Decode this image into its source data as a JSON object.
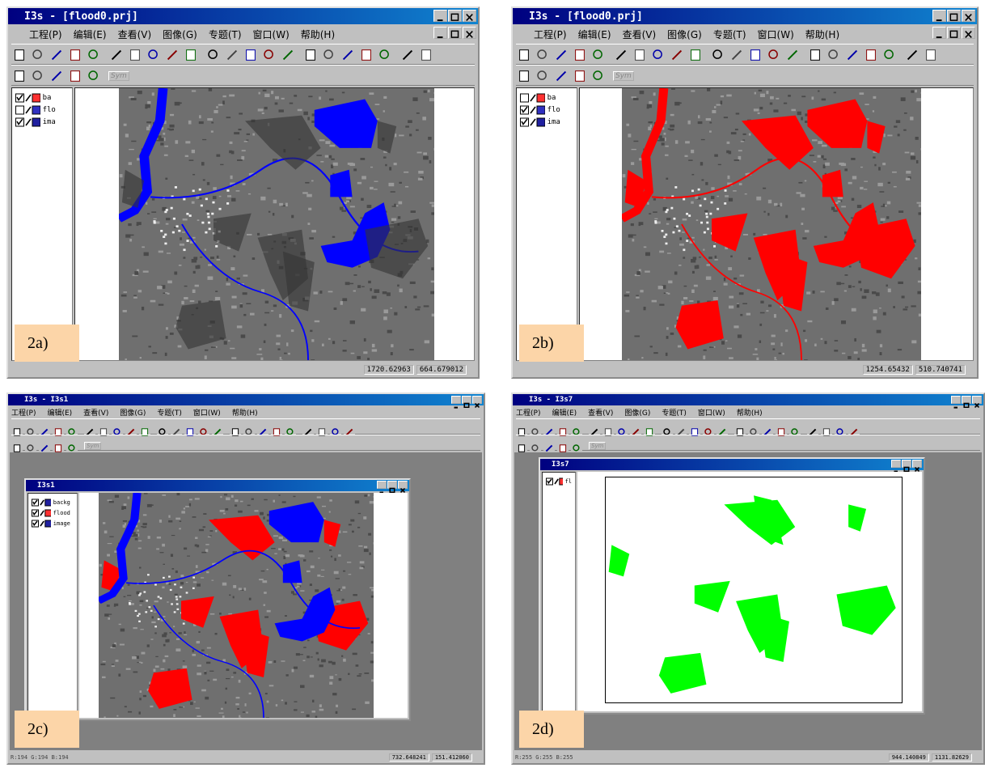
{
  "panels": [
    {
      "label": "2a)",
      "window": {
        "title": "I3s - [flood0.prj]",
        "menu": [
          "工程(P)",
          "编辑(E)",
          "查看(V)",
          "图像(G)",
          "专题(T)",
          "窗口(W)",
          "帮助(H)"
        ],
        "toolbar_text": "Sym",
        "layers": [
          "ba",
          "flo",
          "ima"
        ],
        "status": [
          "1720.62963",
          "664.679012"
        ]
      }
    },
    {
      "label": "2b)",
      "window": {
        "title": "I3s - [flood0.prj]",
        "menu": [
          "工程(P)",
          "编辑(E)",
          "查看(V)",
          "图像(G)",
          "专题(T)",
          "窗口(W)",
          "帮助(H)"
        ],
        "toolbar_text": "Sym",
        "layers": [
          "ba",
          "flo",
          "ima"
        ],
        "status": [
          "1254.65432",
          "510.740741"
        ]
      }
    },
    {
      "label": "2c)",
      "window": {
        "title": "I3s - I3s1",
        "inner_title": "I3s1",
        "menu": [
          "工程(P)",
          "编辑(E)",
          "查看(V)",
          "图像(G)",
          "专题(T)",
          "窗口(W)",
          "帮助(H)"
        ],
        "toolbar_text": "Sym",
        "layers": [
          "backg",
          "flood",
          "image"
        ],
        "status": [
          "R:194 G:194 B:194",
          "732.648241",
          "151.412060"
        ]
      }
    },
    {
      "label": "2d)",
      "window": {
        "title": "I3s - I3s7",
        "inner_title": "I3s7",
        "menu": [
          "工程(P)",
          "编辑(E)",
          "查看(V)",
          "图像(G)",
          "专题(T)",
          "窗口(W)",
          "帮助(H)"
        ],
        "toolbar_text": "Sym",
        "layers": [
          "fl"
        ],
        "status": [
          "R:255 G:255 B:255",
          "944.140849",
          "1131.82629"
        ]
      }
    }
  ]
}
